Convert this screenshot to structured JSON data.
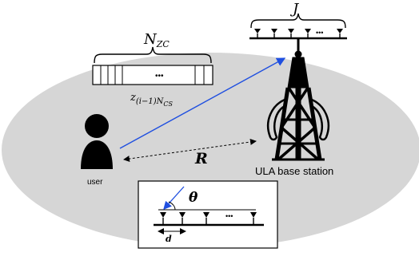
{
  "labels": {
    "nzc_main": "N",
    "nzc_sub": "ZC",
    "seq_dots": "•••",
    "seq_label_main": "z",
    "seq_label_sub": "(i−1)N",
    "seq_label_subsub": "CS",
    "user": "user",
    "distance": "R",
    "base_station": "ULA base station",
    "antennas_count": "J",
    "antenna_dots": "•••",
    "angle": "θ",
    "spacing": "d",
    "inset_dots": "•••"
  },
  "colors": {
    "ground": "#d6d6d6",
    "signal_ray": "#1f4fe0",
    "ink": "#000000",
    "inset_bg": "#ffffff"
  },
  "icons": [
    "user-person-icon",
    "tower-icon",
    "antenna-icon"
  ]
}
